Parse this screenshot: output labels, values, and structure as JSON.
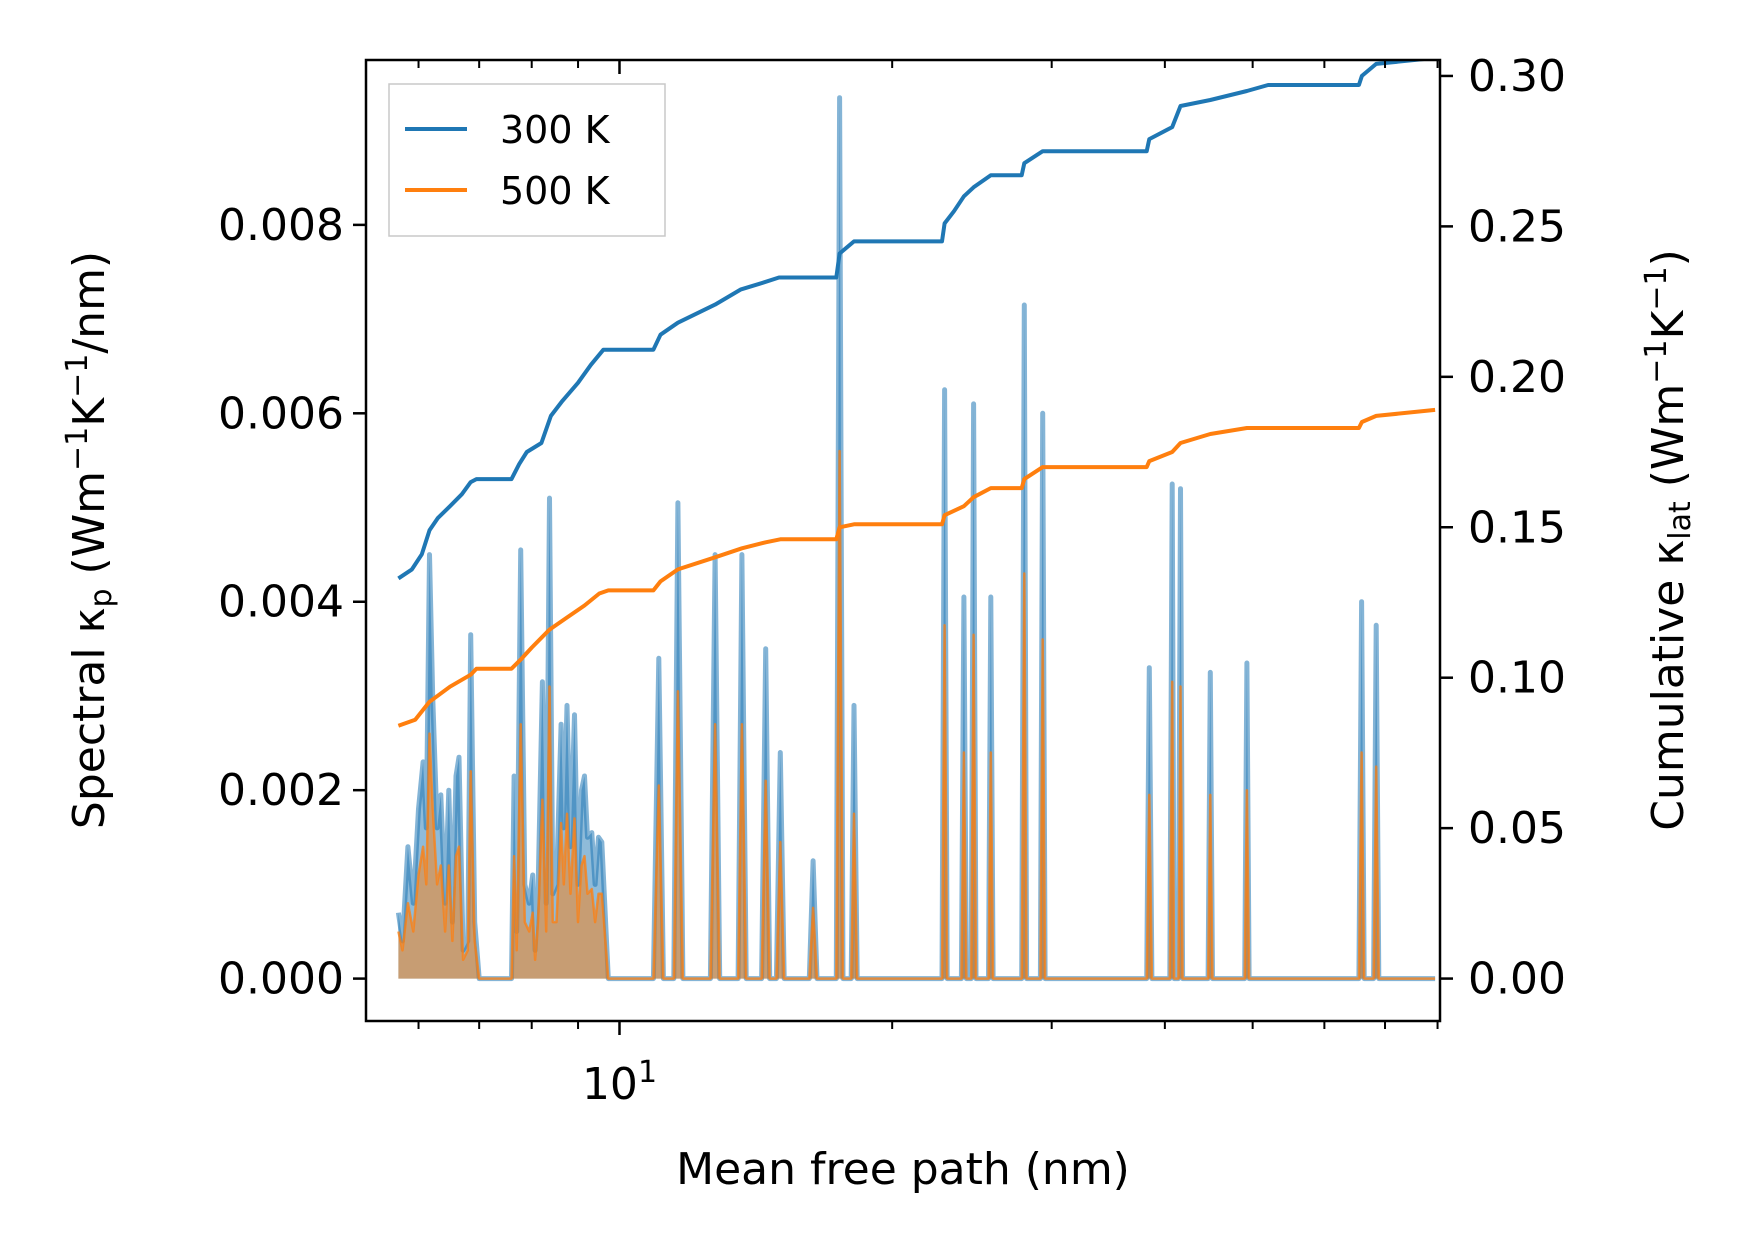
{
  "chart_data": {
    "type": "area",
    "xscale": "log",
    "x_tick_labels": [
      {
        "base": "10",
        "exp": "1",
        "value": 10
      }
    ],
    "xlabel": "Mean free path (nm)",
    "ylabel_left": {
      "pre": "Spectral κ",
      "sub": "p",
      "mid": " (Wm",
      "sup1": "−1",
      "mid2": "K",
      "sup2": "−1",
      "post": "/nm)"
    },
    "ylabel_right": {
      "pre": "Cumulative κ",
      "sub": "lat",
      "mid": " (Wm",
      "sup1": "−1",
      "mid2": "K",
      "sup2": "−1",
      "post": ")"
    },
    "xlim": [
      5.25,
      80.5
    ],
    "ylim_left": [
      -0.00045,
      0.00975
    ],
    "ylim_right": [
      -0.0141,
      0.3053
    ],
    "y_left_ticks": [
      0.0,
      0.002,
      0.004,
      0.006,
      0.008
    ],
    "y_left_tick_labels": [
      "0.000",
      "0.002",
      "0.004",
      "0.006",
      "0.008"
    ],
    "y_right_ticks": [
      0.0,
      0.05,
      0.1,
      0.15,
      0.2,
      0.25,
      0.3
    ],
    "y_right_tick_labels": [
      "0.00",
      "0.05",
      "0.10",
      "0.15",
      "0.20",
      "0.25",
      "0.30"
    ],
    "legend": {
      "position": "top-left",
      "entries": [
        {
          "label": "300 K",
          "color": "#1f77b4"
        },
        {
          "label": "500 K",
          "color": "#ff7f0e"
        }
      ]
    },
    "colors": {
      "blue": "#1f77b4",
      "orange": "#ff7f0e",
      "blue_fill": "#1f77b4",
      "orange_fill": "#ff7f0e"
    },
    "spectral_300K": [
      [
        5.7,
        0.0007
      ],
      [
        5.76,
        0.0004
      ],
      [
        5.84,
        0.0014
      ],
      [
        5.92,
        0.0008
      ],
      [
        6.0,
        0.0018
      ],
      [
        6.07,
        0.0023
      ],
      [
        6.12,
        0.0016
      ],
      [
        6.17,
        0.0045
      ],
      [
        6.22,
        0.003
      ],
      [
        6.29,
        0.0016
      ],
      [
        6.35,
        0.00195
      ],
      [
        6.42,
        0.0008
      ],
      [
        6.48,
        0.002
      ],
      [
        6.54,
        0.0006
      ],
      [
        6.6,
        0.00215
      ],
      [
        6.65,
        0.00235
      ],
      [
        6.72,
        0.0003
      ],
      [
        6.8,
        0.0004
      ],
      [
        6.85,
        0.00365
      ],
      [
        6.92,
        0.0006
      ],
      [
        7.0,
        0.0
      ],
      [
        7.6,
        0.0
      ],
      [
        7.65,
        0.00215
      ],
      [
        7.7,
        0.0005
      ],
      [
        7.78,
        0.00455
      ],
      [
        7.86,
        0.001
      ],
      [
        7.95,
        0.0008
      ],
      [
        8.02,
        0.0011
      ],
      [
        8.07,
        0.0003
      ],
      [
        8.13,
        0.0009
      ],
      [
        8.22,
        0.00315
      ],
      [
        8.3,
        0.0008
      ],
      [
        8.37,
        0.0051
      ],
      [
        8.44,
        0.0009
      ],
      [
        8.52,
        0.001
      ],
      [
        8.62,
        0.0027
      ],
      [
        8.68,
        0.0016
      ],
      [
        8.75,
        0.0029
      ],
      [
        8.83,
        0.0014
      ],
      [
        8.92,
        0.0028
      ],
      [
        9.0,
        0.001
      ],
      [
        9.08,
        0.002
      ],
      [
        9.15,
        0.00215
      ],
      [
        9.22,
        0.0015
      ],
      [
        9.32,
        0.00155
      ],
      [
        9.4,
        0.001
      ],
      [
        9.48,
        0.0015
      ],
      [
        9.56,
        0.00145
      ],
      [
        9.63,
        0.0008
      ],
      [
        9.72,
        0.0
      ],
      [
        10.9,
        0.0
      ],
      [
        11.05,
        0.0034
      ],
      [
        11.18,
        0.0
      ],
      [
        11.48,
        0.0
      ],
      [
        11.6,
        0.00505
      ],
      [
        11.75,
        0.0
      ],
      [
        12.6,
        0.0
      ],
      [
        12.75,
        0.0045
      ],
      [
        12.9,
        0.0
      ],
      [
        13.52,
        0.0
      ],
      [
        13.65,
        0.0045
      ],
      [
        13.8,
        0.0
      ],
      [
        14.35,
        0.0
      ],
      [
        14.5,
        0.0035
      ],
      [
        14.65,
        0.0
      ],
      [
        14.9,
        0.0
      ],
      [
        15.05,
        0.0024
      ],
      [
        15.2,
        0.0
      ],
      [
        16.2,
        0.0
      ],
      [
        16.36,
        0.00125
      ],
      [
        16.52,
        0.0
      ],
      [
        17.35,
        0.0
      ],
      [
        17.5,
        0.00935
      ],
      [
        17.65,
        0.0
      ],
      [
        18.02,
        0.0
      ],
      [
        18.15,
        0.0029
      ],
      [
        18.3,
        0.0
      ],
      [
        22.7,
        0.0
      ],
      [
        22.85,
        0.00625
      ],
      [
        23.0,
        0.0
      ],
      [
        23.85,
        0.0
      ],
      [
        24.0,
        0.00405
      ],
      [
        24.15,
        0.0
      ],
      [
        24.45,
        0.0
      ],
      [
        24.6,
        0.0061
      ],
      [
        24.75,
        0.0
      ],
      [
        25.55,
        0.0
      ],
      [
        25.7,
        0.00405
      ],
      [
        25.85,
        0.0
      ],
      [
        27.8,
        0.0
      ],
      [
        27.98,
        0.00715
      ],
      [
        28.15,
        0.0
      ],
      [
        29.15,
        0.0
      ],
      [
        29.32,
        0.006
      ],
      [
        29.5,
        0.0
      ],
      [
        38.2,
        0.0
      ],
      [
        38.45,
        0.0033
      ],
      [
        38.7,
        0.0
      ],
      [
        40.5,
        0.0
      ],
      [
        40.75,
        0.00525
      ],
      [
        40.95,
        0.0
      ],
      [
        41.4,
        0.0
      ],
      [
        41.62,
        0.0052
      ],
      [
        41.85,
        0.0
      ],
      [
        44.65,
        0.0
      ],
      [
        44.9,
        0.00325
      ],
      [
        45.15,
        0.0
      ],
      [
        49.0,
        0.0
      ],
      [
        49.28,
        0.00335
      ],
      [
        49.55,
        0.0
      ],
      [
        65.5,
        0.0
      ],
      [
        65.95,
        0.004
      ],
      [
        66.4,
        0.0
      ],
      [
        68.0,
        0.0
      ],
      [
        68.45,
        0.00375
      ],
      [
        68.9,
        0.0
      ],
      [
        79.5,
        0.0
      ]
    ],
    "spectral_500K": [
      [
        5.7,
        0.0005
      ],
      [
        5.76,
        0.0003
      ],
      [
        5.84,
        0.0008
      ],
      [
        5.92,
        0.0005
      ],
      [
        6.0,
        0.0011
      ],
      [
        6.07,
        0.0014
      ],
      [
        6.12,
        0.001
      ],
      [
        6.17,
        0.0026
      ],
      [
        6.22,
        0.0018
      ],
      [
        6.29,
        0.001
      ],
      [
        6.35,
        0.0012
      ],
      [
        6.42,
        0.0005
      ],
      [
        6.48,
        0.0012
      ],
      [
        6.54,
        0.0004
      ],
      [
        6.6,
        0.0013
      ],
      [
        6.65,
        0.0014
      ],
      [
        6.72,
        0.0002
      ],
      [
        6.8,
        0.0003
      ],
      [
        6.85,
        0.0022
      ],
      [
        6.92,
        0.0004
      ],
      [
        7.0,
        0.0
      ],
      [
        7.6,
        0.0
      ],
      [
        7.65,
        0.0013
      ],
      [
        7.7,
        0.0003
      ],
      [
        7.78,
        0.0027
      ],
      [
        7.86,
        0.0006
      ],
      [
        7.95,
        0.0005
      ],
      [
        8.02,
        0.0007
      ],
      [
        8.07,
        0.0002
      ],
      [
        8.13,
        0.0006
      ],
      [
        8.22,
        0.0019
      ],
      [
        8.3,
        0.0005
      ],
      [
        8.37,
        0.0031
      ],
      [
        8.44,
        0.0006
      ],
      [
        8.52,
        0.0006
      ],
      [
        8.62,
        0.00165
      ],
      [
        8.68,
        0.001
      ],
      [
        8.75,
        0.00175
      ],
      [
        8.83,
        0.0009
      ],
      [
        8.92,
        0.0017
      ],
      [
        9.0,
        0.0006
      ],
      [
        9.08,
        0.0012
      ],
      [
        9.15,
        0.0013
      ],
      [
        9.22,
        0.0009
      ],
      [
        9.32,
        0.00095
      ],
      [
        9.4,
        0.0006
      ],
      [
        9.48,
        0.0009
      ],
      [
        9.56,
        0.0009
      ],
      [
        9.63,
        0.0005
      ],
      [
        9.72,
        0.0
      ],
      [
        10.9,
        0.0
      ],
      [
        11.05,
        0.00205
      ],
      [
        11.18,
        0.0
      ],
      [
        11.48,
        0.0
      ],
      [
        11.6,
        0.00305
      ],
      [
        11.75,
        0.0
      ],
      [
        12.6,
        0.0
      ],
      [
        12.75,
        0.0027
      ],
      [
        12.9,
        0.0
      ],
      [
        13.52,
        0.0
      ],
      [
        13.65,
        0.0027
      ],
      [
        13.8,
        0.0
      ],
      [
        14.35,
        0.0
      ],
      [
        14.5,
        0.0021
      ],
      [
        14.65,
        0.0
      ],
      [
        14.9,
        0.0
      ],
      [
        15.05,
        0.00145
      ],
      [
        15.2,
        0.0
      ],
      [
        16.2,
        0.0
      ],
      [
        16.36,
        0.00075
      ],
      [
        16.52,
        0.0
      ],
      [
        17.35,
        0.0
      ],
      [
        17.5,
        0.0056
      ],
      [
        17.65,
        0.0
      ],
      [
        18.02,
        0.0
      ],
      [
        18.15,
        0.00175
      ],
      [
        18.3,
        0.0
      ],
      [
        22.7,
        0.0
      ],
      [
        22.85,
        0.00375
      ],
      [
        23.0,
        0.0
      ],
      [
        23.85,
        0.0
      ],
      [
        24.0,
        0.0024
      ],
      [
        24.15,
        0.0
      ],
      [
        24.45,
        0.0
      ],
      [
        24.6,
        0.00365
      ],
      [
        24.75,
        0.0
      ],
      [
        25.55,
        0.0
      ],
      [
        25.7,
        0.0024
      ],
      [
        25.85,
        0.0
      ],
      [
        27.8,
        0.0
      ],
      [
        27.98,
        0.0043
      ],
      [
        28.15,
        0.0
      ],
      [
        29.15,
        0.0
      ],
      [
        29.32,
        0.0036
      ],
      [
        29.5,
        0.0
      ],
      [
        38.2,
        0.0
      ],
      [
        38.45,
        0.00195
      ],
      [
        38.7,
        0.0
      ],
      [
        40.5,
        0.0
      ],
      [
        40.75,
        0.00315
      ],
      [
        40.95,
        0.0
      ],
      [
        41.4,
        0.0
      ],
      [
        41.62,
        0.0031
      ],
      [
        41.85,
        0.0
      ],
      [
        44.65,
        0.0
      ],
      [
        44.9,
        0.00195
      ],
      [
        45.15,
        0.0
      ],
      [
        49.0,
        0.0
      ],
      [
        49.28,
        0.002
      ],
      [
        49.55,
        0.0
      ],
      [
        65.5,
        0.0
      ],
      [
        65.95,
        0.0024
      ],
      [
        66.4,
        0.0
      ],
      [
        68.0,
        0.0
      ],
      [
        68.45,
        0.00225
      ],
      [
        68.9,
        0.0
      ],
      [
        79.5,
        0.0
      ]
    ],
    "cumulative_300K": [
      [
        5.7,
        0.133
      ],
      [
        5.9,
        0.136
      ],
      [
        6.05,
        0.141
      ],
      [
        6.17,
        0.149
      ],
      [
        6.3,
        0.153
      ],
      [
        6.5,
        0.157
      ],
      [
        6.7,
        0.161
      ],
      [
        6.85,
        0.165
      ],
      [
        6.95,
        0.166
      ],
      [
        7.6,
        0.166
      ],
      [
        7.75,
        0.171
      ],
      [
        7.9,
        0.175
      ],
      [
        8.2,
        0.178
      ],
      [
        8.4,
        0.187
      ],
      [
        8.65,
        0.192
      ],
      [
        9.0,
        0.198
      ],
      [
        9.3,
        0.204
      ],
      [
        9.6,
        0.209
      ],
      [
        10.9,
        0.209
      ],
      [
        11.1,
        0.214
      ],
      [
        11.6,
        0.218
      ],
      [
        12.75,
        0.224
      ],
      [
        13.6,
        0.229
      ],
      [
        14.3,
        0.231
      ],
      [
        15.0,
        0.233
      ],
      [
        17.35,
        0.233
      ],
      [
        17.5,
        0.241
      ],
      [
        18.15,
        0.245
      ],
      [
        22.7,
        0.245
      ],
      [
        22.85,
        0.251
      ],
      [
        23.4,
        0.255
      ],
      [
        24.0,
        0.26
      ],
      [
        24.6,
        0.263
      ],
      [
        25.7,
        0.267
      ],
      [
        27.8,
        0.267
      ],
      [
        27.98,
        0.271
      ],
      [
        29.32,
        0.275
      ],
      [
        38.2,
        0.275
      ],
      [
        38.45,
        0.279
      ],
      [
        40.75,
        0.283
      ],
      [
        41.62,
        0.29
      ],
      [
        44.9,
        0.292
      ],
      [
        49.28,
        0.295
      ],
      [
        52.0,
        0.297
      ],
      [
        65.5,
        0.297
      ],
      [
        66.0,
        0.3
      ],
      [
        68.45,
        0.304
      ],
      [
        79.5,
        0.306
      ]
    ],
    "cumulative_500K": [
      [
        5.7,
        0.084
      ],
      [
        5.95,
        0.086
      ],
      [
        6.17,
        0.092
      ],
      [
        6.5,
        0.097
      ],
      [
        6.85,
        0.101
      ],
      [
        6.95,
        0.103
      ],
      [
        7.6,
        0.103
      ],
      [
        7.78,
        0.106
      ],
      [
        8.0,
        0.11
      ],
      [
        8.37,
        0.116
      ],
      [
        8.75,
        0.12
      ],
      [
        9.15,
        0.124
      ],
      [
        9.5,
        0.128
      ],
      [
        9.72,
        0.129
      ],
      [
        10.9,
        0.129
      ],
      [
        11.1,
        0.132
      ],
      [
        11.6,
        0.136
      ],
      [
        12.75,
        0.14
      ],
      [
        13.65,
        0.143
      ],
      [
        14.5,
        0.145
      ],
      [
        15.05,
        0.146
      ],
      [
        17.35,
        0.146
      ],
      [
        17.5,
        0.15
      ],
      [
        18.15,
        0.151
      ],
      [
        22.7,
        0.151
      ],
      [
        22.85,
        0.154
      ],
      [
        24.0,
        0.157
      ],
      [
        24.6,
        0.16
      ],
      [
        25.7,
        0.163
      ],
      [
        27.8,
        0.163
      ],
      [
        27.98,
        0.166
      ],
      [
        29.32,
        0.17
      ],
      [
        38.2,
        0.17
      ],
      [
        38.45,
        0.172
      ],
      [
        40.75,
        0.175
      ],
      [
        41.62,
        0.178
      ],
      [
        44.9,
        0.181
      ],
      [
        49.28,
        0.183
      ],
      [
        65.5,
        0.183
      ],
      [
        66.0,
        0.185
      ],
      [
        68.45,
        0.187
      ],
      [
        79.5,
        0.189
      ]
    ]
  }
}
